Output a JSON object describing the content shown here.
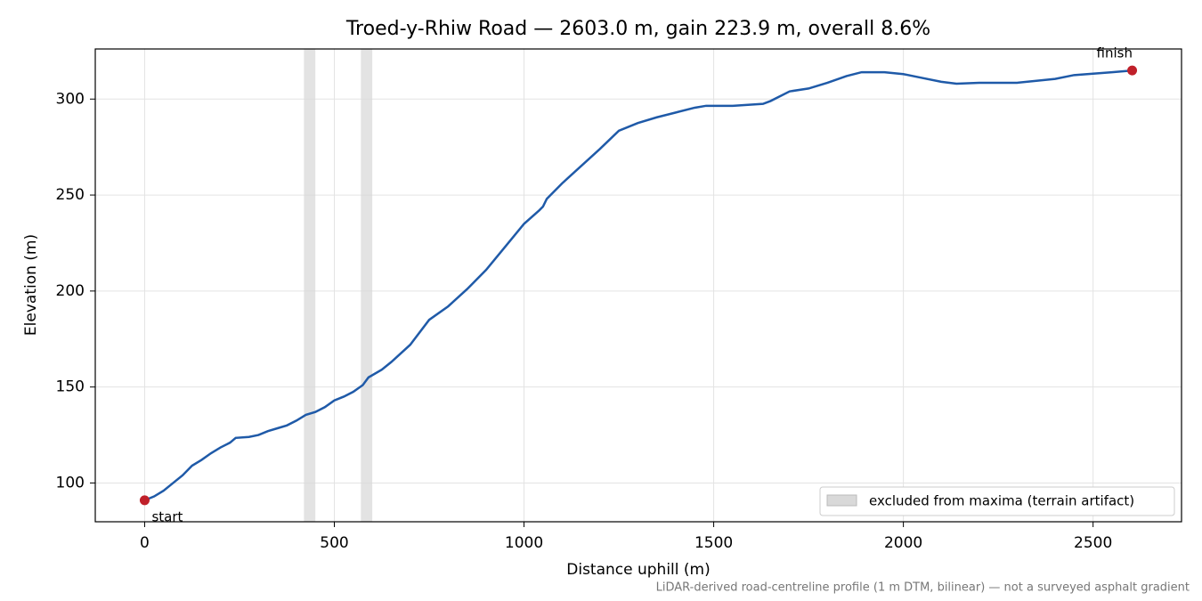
{
  "chart_data": {
    "type": "line",
    "title": "Troed-y-Rhiw Road — 2603.0 m, gain 223.9 m, overall 8.6%",
    "xlabel": "Distance uphill (m)",
    "ylabel": "Elevation (m)",
    "x": [
      0,
      25,
      50,
      75,
      100,
      125,
      150,
      175,
      200,
      225,
      240,
      275,
      300,
      325,
      350,
      375,
      400,
      425,
      450,
      475,
      500,
      525,
      550,
      575,
      590,
      625,
      650,
      700,
      750,
      800,
      850,
      900,
      950,
      1000,
      1040,
      1050,
      1060,
      1100,
      1150,
      1200,
      1250,
      1300,
      1350,
      1400,
      1450,
      1480,
      1550,
      1630,
      1650,
      1700,
      1750,
      1800,
      1850,
      1890,
      1950,
      2000,
      2050,
      2100,
      2140,
      2200,
      2300,
      2400,
      2450,
      2550,
      2603
    ],
    "values": [
      91,
      93,
      96,
      100,
      104,
      109,
      112,
      115.5,
      118.5,
      121,
      123.5,
      124,
      125,
      127,
      128.5,
      130,
      132.5,
      135.5,
      137,
      139.5,
      143,
      145,
      147.5,
      151,
      155,
      159,
      163,
      172,
      185,
      192,
      201,
      211,
      223,
      235,
      242,
      244,
      248,
      256,
      265,
      274,
      283.5,
      287.5,
      290.5,
      293,
      295.5,
      296.5,
      296.5,
      297.5,
      299,
      304,
      305.5,
      308.5,
      312,
      314,
      314,
      313,
      311,
      309,
      308,
      308.5,
      308.5,
      310.5,
      312.5,
      314,
      314.9
    ],
    "color": "#1f5aa8",
    "xlim": [
      -130.15,
      2733.15
    ],
    "ylim": [
      79.8,
      326.1
    ],
    "xticks": [
      0,
      500,
      1000,
      1500,
      2000,
      2500
    ],
    "yticks": [
      100,
      150,
      200,
      250,
      300
    ],
    "grid": true,
    "shaded_regions": [
      [
        420,
        450
      ],
      [
        570,
        600
      ]
    ],
    "shade_label": "excluded from maxima (terrain artifact)",
    "shade_color": "#d9d9d9",
    "legend": "lower right",
    "endpoints": [
      {
        "label": "start",
        "x": 0,
        "y": 91
      },
      {
        "label": "finish",
        "x": 2603,
        "y": 314.9
      }
    ],
    "endpoint_color": "#c0202a",
    "note": "LiDAR-derived road-centreline profile (1 m DTM, bilinear) — not a surveyed asphalt gradient"
  }
}
